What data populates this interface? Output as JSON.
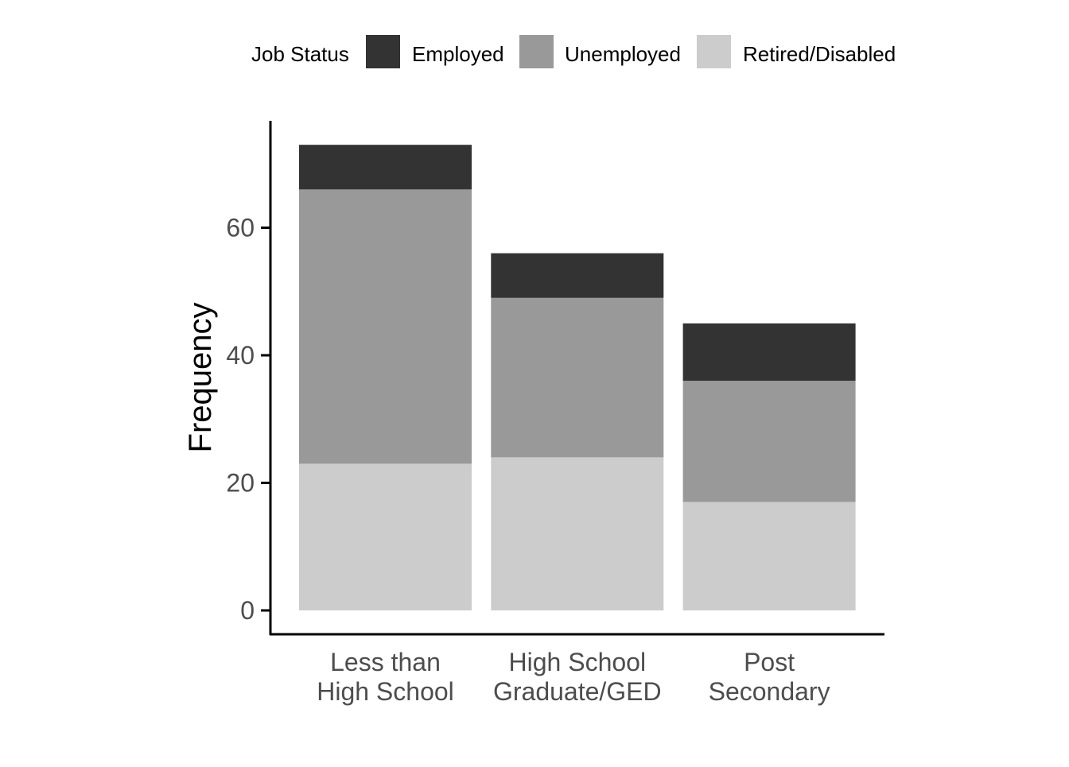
{
  "chart_data": {
    "type": "bar",
    "stacked": true,
    "ylabel": "Frequency",
    "xlabel": "",
    "ylim": [
      0,
      75
    ],
    "yticks": [
      0,
      20,
      40,
      60
    ],
    "categories": [
      [
        "Less than",
        "High School"
      ],
      [
        "High School",
        "Graduate/GED"
      ],
      [
        "Post",
        "Secondary"
      ]
    ],
    "legend": {
      "title": "Job Status",
      "position": "top"
    },
    "series": [
      {
        "name": "Retired/Disabled",
        "color": "#cccccc",
        "values": [
          23,
          24,
          17
        ]
      },
      {
        "name": "Unemployed",
        "color": "#999999",
        "values": [
          43,
          25,
          19
        ]
      },
      {
        "name": "Employed",
        "color": "#333333",
        "values": [
          7,
          7,
          9
        ]
      }
    ],
    "legend_order": [
      "Employed",
      "Unemployed",
      "Retired/Disabled"
    ],
    "grid": false
  }
}
